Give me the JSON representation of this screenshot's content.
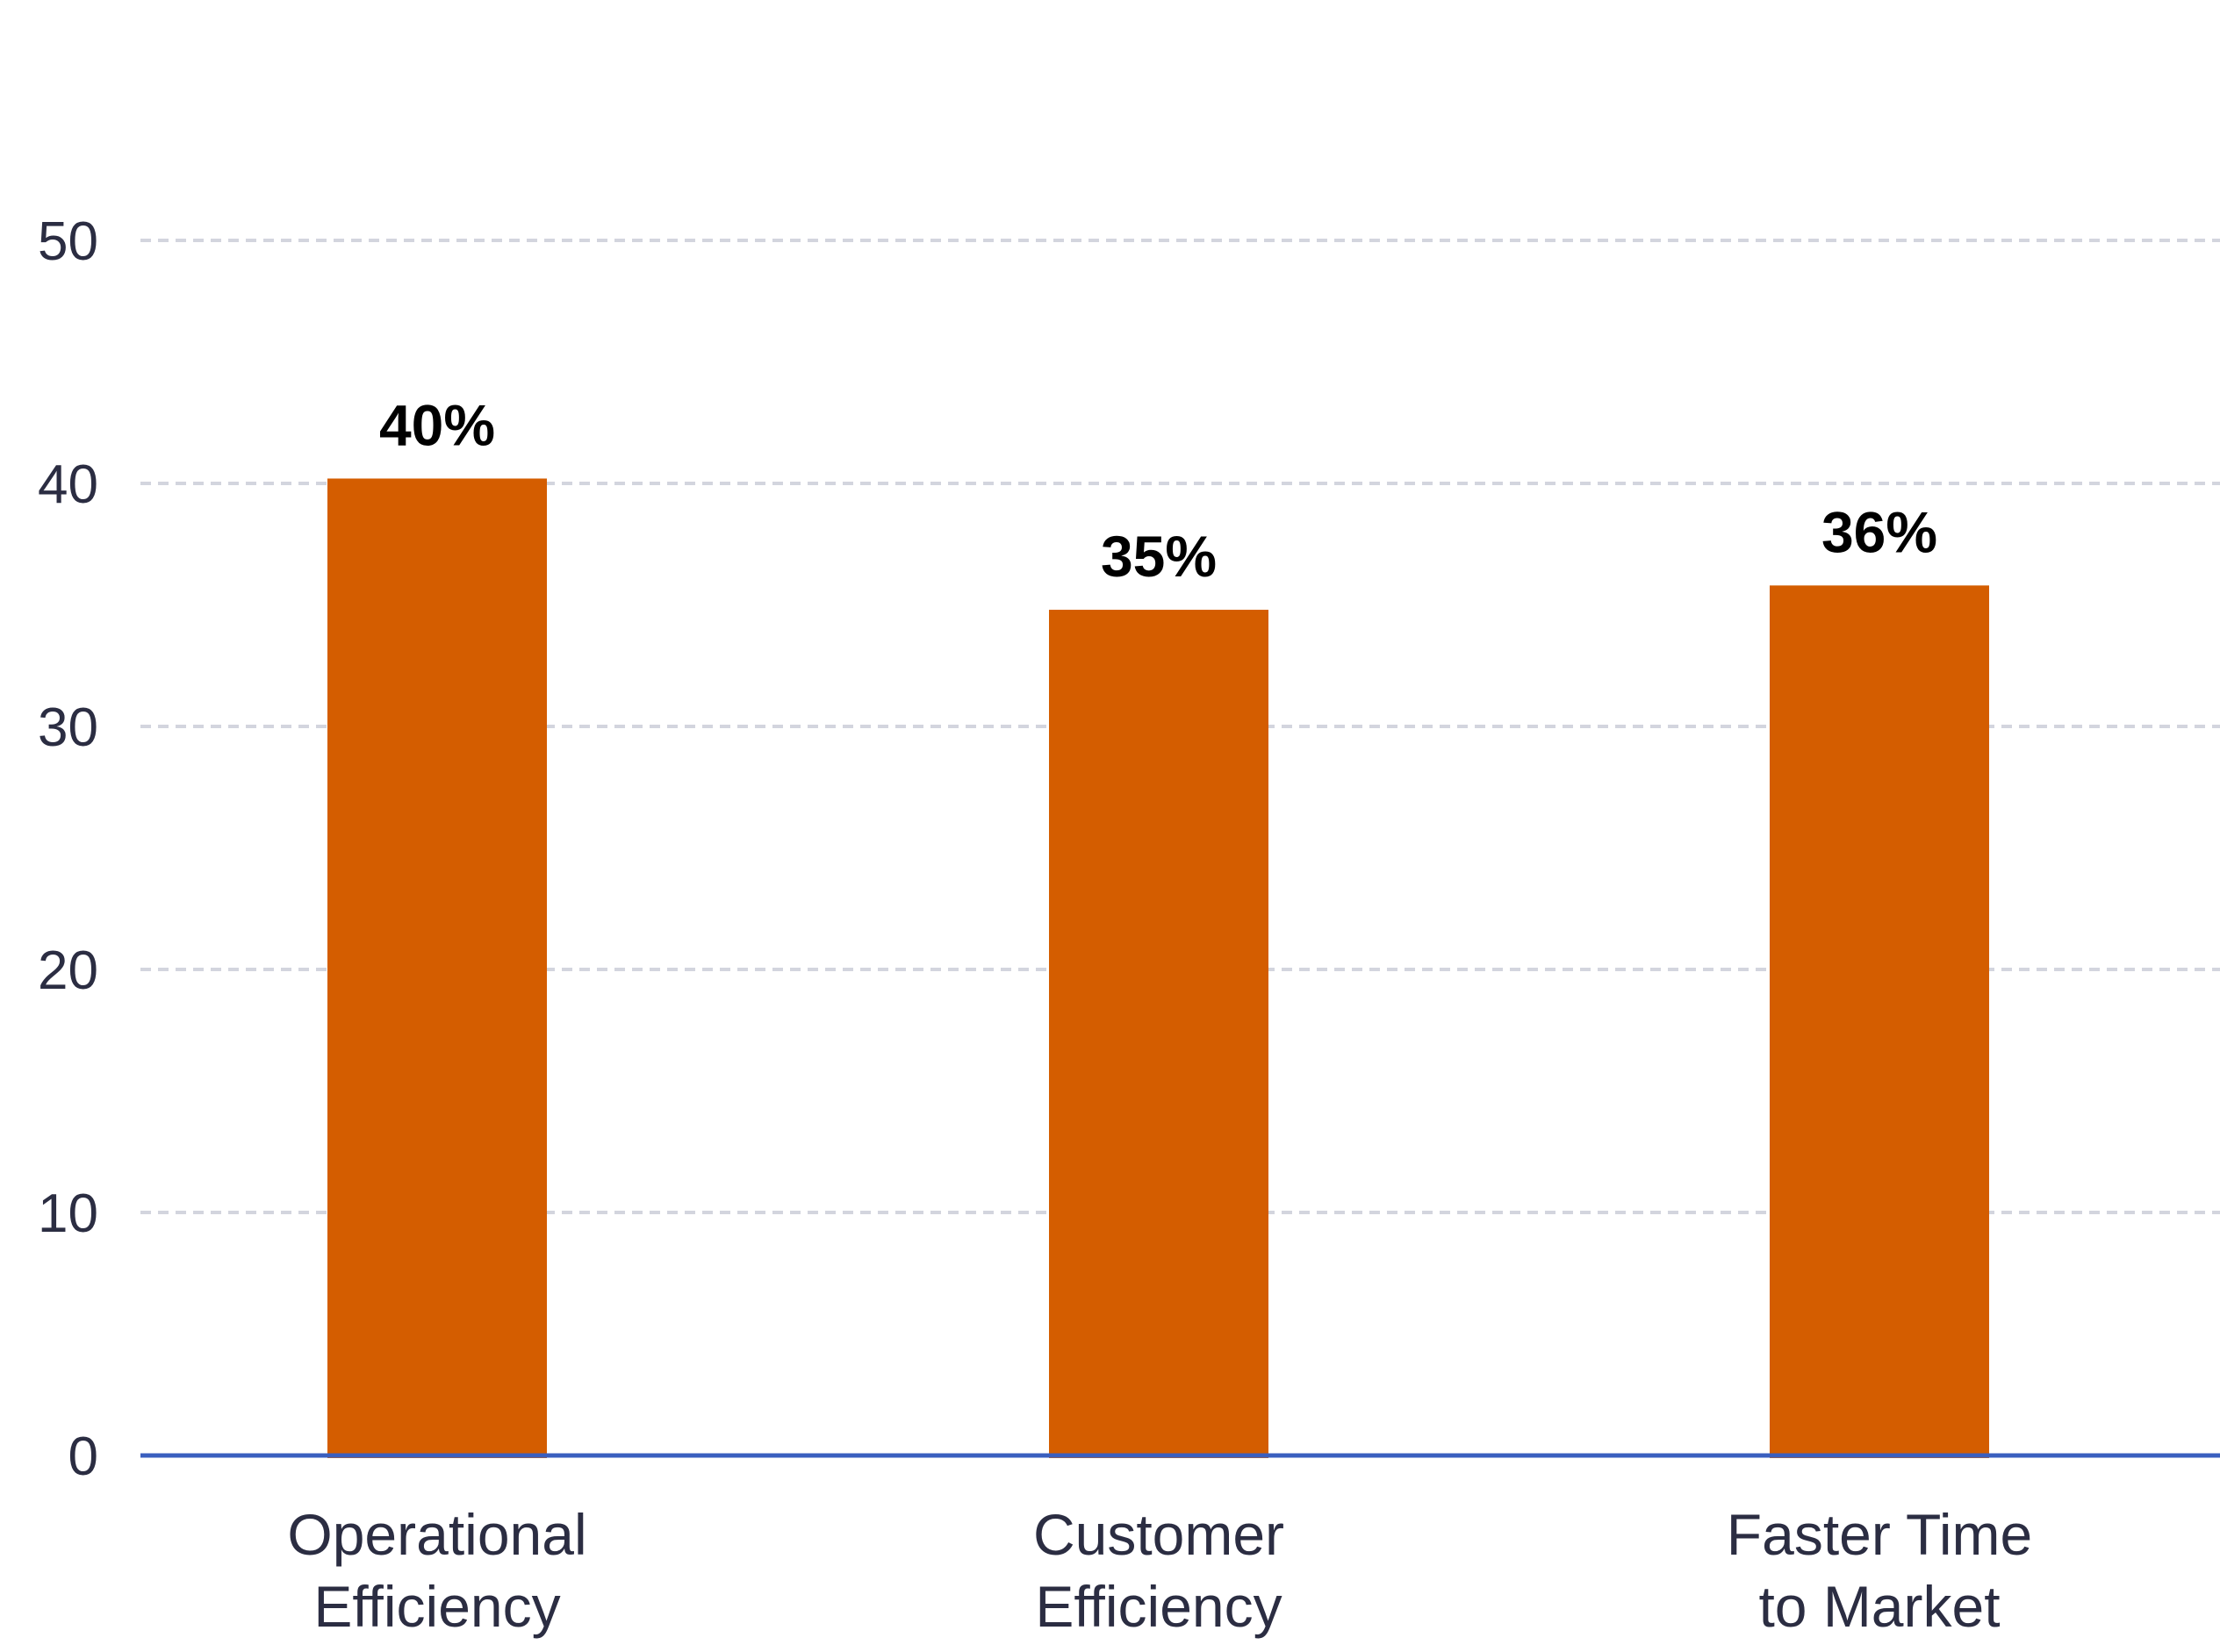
{
  "chart_data": {
    "type": "bar",
    "categories": [
      [
        "Operational",
        "Efficiency"
      ],
      [
        "Customer",
        "Efficiency"
      ],
      [
        "Faster Time",
        "to Market"
      ]
    ],
    "values": [
      40.2,
      34.8,
      35.8
    ],
    "data_labels": [
      "40%",
      "35%",
      "36%"
    ],
    "y_ticks": [
      "0",
      "10",
      "20",
      "30",
      "40",
      "50"
    ],
    "ylim": [
      0,
      50
    ],
    "grid": true,
    "bar_color": "#d45d00",
    "grid_color": "#d3d5de",
    "axis_color": "#3a5fbf",
    "text_color": "#2b2d42"
  }
}
